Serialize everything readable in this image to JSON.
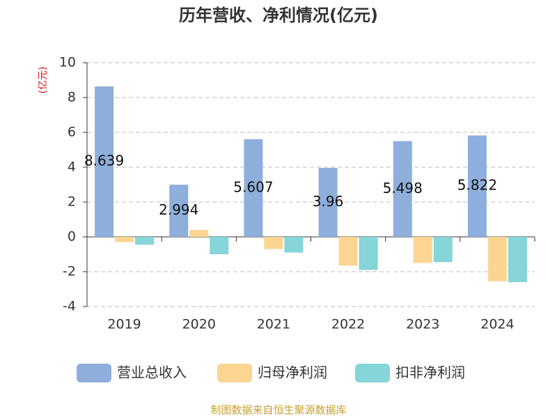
{
  "chart_data": {
    "type": "bar",
    "title": "历年营收、净利情况(亿元)",
    "ylabel": "(亿元)",
    "categories": [
      "2019",
      "2020",
      "2021",
      "2022",
      "2023",
      "2024"
    ],
    "series": [
      {
        "name": "营业总收入",
        "color": "#8eaedb",
        "values": [
          8.639,
          2.994,
          5.607,
          3.96,
          5.498,
          5.822
        ],
        "show_labels": true
      },
      {
        "name": "归母净利润",
        "color": "#fcd592",
        "values": [
          -0.3,
          0.4,
          -0.7,
          -1.65,
          -1.5,
          -2.55
        ]
      },
      {
        "name": "扣非净利润",
        "color": "#86d5d8",
        "values": [
          -0.45,
          -1.0,
          -0.9,
          -1.9,
          -1.45,
          -2.6
        ]
      }
    ],
    "ylim": [
      -4,
      10
    ],
    "yticks": [
      -4,
      -2,
      0,
      2,
      4,
      6,
      8,
      10
    ],
    "grid": true,
    "legend": "bottom",
    "source": "制图数据来自恒生聚源数据库"
  }
}
